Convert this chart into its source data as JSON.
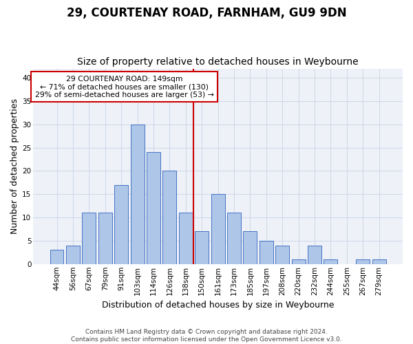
{
  "title": "29, COURTENAY ROAD, FARNHAM, GU9 9DN",
  "subtitle": "Size of property relative to detached houses in Weybourne",
  "xlabel": "Distribution of detached houses by size in Weybourne",
  "ylabel": "Number of detached properties",
  "categories": [
    "44sqm",
    "56sqm",
    "67sqm",
    "79sqm",
    "91sqm",
    "103sqm",
    "114sqm",
    "126sqm",
    "138sqm",
    "150sqm",
    "161sqm",
    "173sqm",
    "185sqm",
    "197sqm",
    "208sqm",
    "220sqm",
    "232sqm",
    "244sqm",
    "255sqm",
    "267sqm",
    "279sqm"
  ],
  "values": [
    3,
    4,
    11,
    11,
    17,
    30,
    24,
    20,
    11,
    7,
    15,
    11,
    7,
    5,
    4,
    1,
    4,
    1,
    0,
    1,
    1
  ],
  "bar_color": "#aec6e8",
  "bar_edge_color": "#4472c4",
  "vline_color": "#cc0000",
  "annotation_text": "29 COURTENAY ROAD: 149sqm\n← 71% of detached houses are smaller (130)\n29% of semi-detached houses are larger (53) →",
  "annotation_box_color": "#ffffff",
  "annotation_box_edge_color": "#cc0000",
  "ylim": [
    0,
    42
  ],
  "yticks": [
    0,
    5,
    10,
    15,
    20,
    25,
    30,
    35,
    40
  ],
  "grid_color": "#d0d8e8",
  "bg_color": "#eef2f8",
  "footnote": "Contains HM Land Registry data © Crown copyright and database right 2024.\nContains public sector information licensed under the Open Government Licence v3.0.",
  "title_fontsize": 12,
  "subtitle_fontsize": 10,
  "xlabel_fontsize": 9,
  "ylabel_fontsize": 9,
  "tick_fontsize": 7.5
}
